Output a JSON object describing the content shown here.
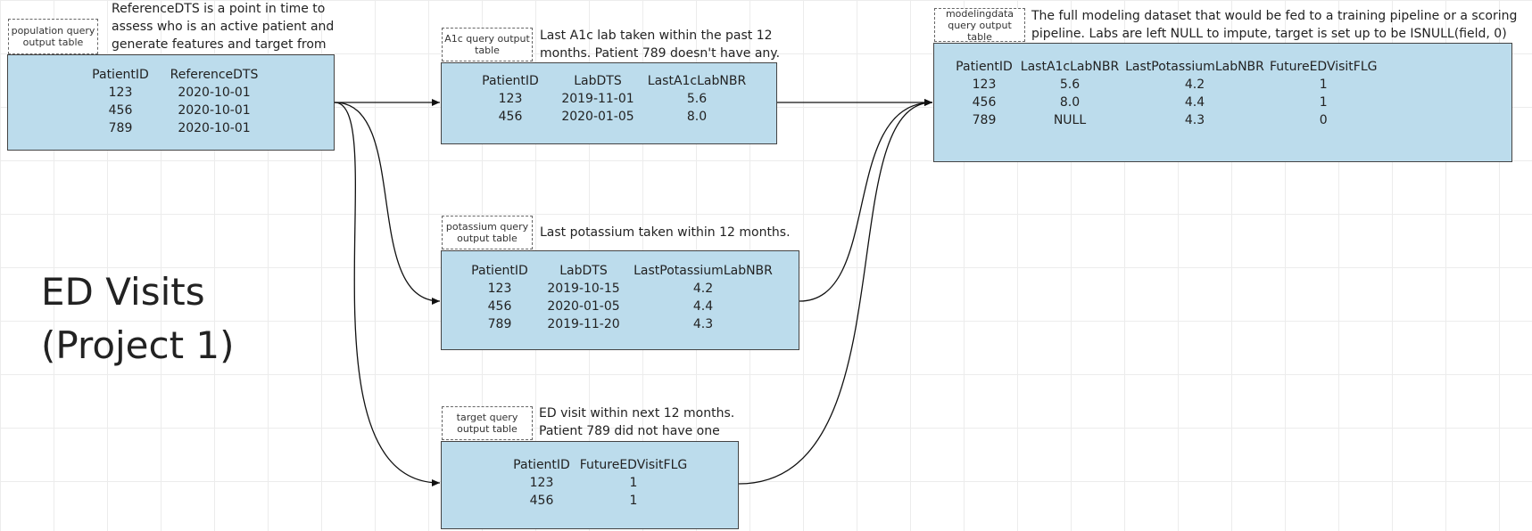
{
  "title": "ED Visits\n(Project 1)",
  "population": {
    "label": "population query output table",
    "note": "ReferenceDTS is a point in time to\nassess who is an active patient and\ngenerate features and target from",
    "columns": [
      "PatientID",
      "ReferenceDTS"
    ],
    "rows": [
      [
        "123",
        "2020-10-01"
      ],
      [
        "456",
        "2020-10-01"
      ],
      [
        "789",
        "2020-10-01"
      ]
    ]
  },
  "a1c": {
    "label": "A1c query output table",
    "note": "Last A1c lab taken within the past 12\nmonths. Patient 789 doesn't have any.",
    "columns": [
      "PatientID",
      "LabDTS",
      "LastA1cLabNBR"
    ],
    "rows": [
      [
        "123",
        "2019-11-01",
        "5.6"
      ],
      [
        "456",
        "2020-01-05",
        "8.0"
      ]
    ]
  },
  "potassium": {
    "label": "potassium query output table",
    "note": "Last potassium taken within 12 months.",
    "columns": [
      "PatientID",
      "LabDTS",
      "LastPotassiumLabNBR"
    ],
    "rows": [
      [
        "123",
        "2019-10-15",
        "4.2"
      ],
      [
        "456",
        "2020-01-05",
        "4.4"
      ],
      [
        "789",
        "2019-11-20",
        "4.3"
      ]
    ]
  },
  "target": {
    "label": "target query output table",
    "note": "ED visit within next 12 months.\nPatient 789 did not have one",
    "columns": [
      "PatientID",
      "FutureEDVisitFLG"
    ],
    "rows": [
      [
        "123",
        "1"
      ],
      [
        "456",
        "1"
      ]
    ]
  },
  "modeling": {
    "label": "modelingdata query output table",
    "note": "The full modeling dataset that would be fed to a training pipeline or a scoring\npipeline. Labs are left NULL to impute, target is set up to be ISNULL(field, 0)",
    "columns": [
      "PatientID",
      "LastA1cLabNBR",
      "LastPotassiumLabNBR",
      "FutureEDVisitFLG"
    ],
    "rows": [
      [
        "123",
        "5.6",
        "4.2",
        "1"
      ],
      [
        "456",
        "8.0",
        "4.4",
        "1"
      ],
      [
        "789",
        "NULL",
        "4.3",
        "0"
      ]
    ]
  }
}
